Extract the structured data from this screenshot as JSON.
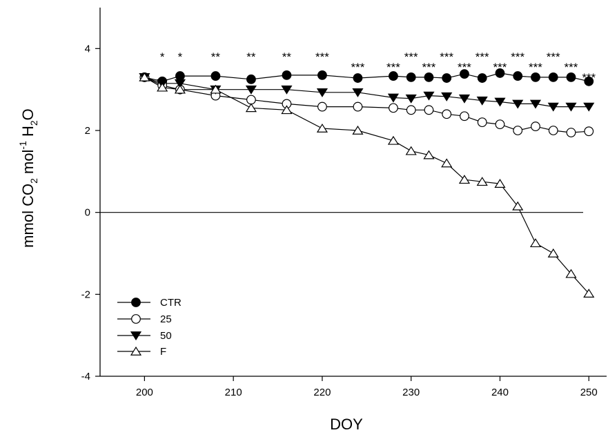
{
  "chart_data": {
    "type": "line",
    "xlabel": "DOY",
    "ylabel": {
      "parts": [
        {
          "text": "mmol CO",
          "kind": "normal"
        },
        {
          "text": "2",
          "kind": "sub"
        },
        {
          "text": " mol",
          "kind": "normal"
        },
        {
          "text": "-1",
          "kind": "sup"
        },
        {
          "text": " H",
          "kind": "normal"
        },
        {
          "text": "2",
          "kind": "sub"
        },
        {
          "text": "O",
          "kind": "normal"
        }
      ]
    },
    "xlim": [
      195,
      252
    ],
    "ylim": [
      -4,
      5
    ],
    "x_ticks": [
      200,
      210,
      220,
      230,
      240,
      250
    ],
    "y_ticks": [
      -4,
      -2,
      0,
      2,
      4
    ],
    "reference_line_y": 0,
    "grid": false,
    "legend_placement": "bottom-left",
    "series": [
      {
        "name": "CTR",
        "marker": "circle-filled",
        "x": [
          200,
          202,
          204,
          208,
          212,
          216,
          220,
          224,
          228,
          230,
          232,
          234,
          236,
          238,
          240,
          242,
          244,
          246,
          248,
          250
        ],
        "y": [
          3.3,
          3.2,
          3.33,
          3.33,
          3.25,
          3.35,
          3.35,
          3.28,
          3.33,
          3.3,
          3.3,
          3.28,
          3.38,
          3.28,
          3.4,
          3.33,
          3.3,
          3.3,
          3.3,
          3.2
        ]
      },
      {
        "name": "25",
        "marker": "circle-open",
        "x": [
          200,
          202,
          204,
          208,
          212,
          216,
          220,
          224,
          228,
          230,
          232,
          234,
          236,
          238,
          240,
          242,
          244,
          246,
          248,
          250
        ],
        "y": [
          3.3,
          3.1,
          3.0,
          2.85,
          2.75,
          2.65,
          2.58,
          2.58,
          2.55,
          2.5,
          2.5,
          2.4,
          2.35,
          2.2,
          2.15,
          2.0,
          2.1,
          2.0,
          1.95,
          1.98
        ]
      },
      {
        "name": "50",
        "marker": "triangle-down-filled",
        "x": [
          200,
          202,
          204,
          208,
          212,
          216,
          220,
          224,
          228,
          230,
          232,
          234,
          236,
          238,
          240,
          242,
          244,
          246,
          248,
          250
        ],
        "y": [
          3.3,
          3.15,
          3.15,
          3.0,
          3.0,
          3.0,
          2.93,
          2.93,
          2.8,
          2.78,
          2.85,
          2.83,
          2.78,
          2.73,
          2.7,
          2.65,
          2.65,
          2.58,
          2.58,
          2.58
        ]
      },
      {
        "name": "F",
        "marker": "triangle-up-open",
        "x": [
          200,
          202,
          204,
          208,
          212,
          216,
          220,
          224,
          228,
          230,
          232,
          234,
          236,
          238,
          240,
          242,
          244,
          246,
          248,
          250
        ],
        "y": [
          3.3,
          3.05,
          3.0,
          3.0,
          2.55,
          2.5,
          2.05,
          2.0,
          1.75,
          1.5,
          1.4,
          1.2,
          0.8,
          0.75,
          0.7,
          0.15,
          -0.75,
          -1.0,
          -1.5,
          -1.98
        ]
      }
    ],
    "annotations": [
      {
        "x": 202,
        "y": 3.7,
        "text": "*"
      },
      {
        "x": 204,
        "y": 3.7,
        "text": "*"
      },
      {
        "x": 208,
        "y": 3.7,
        "text": "**"
      },
      {
        "x": 212,
        "y": 3.7,
        "text": "**"
      },
      {
        "x": 216,
        "y": 3.7,
        "text": "**"
      },
      {
        "x": 220,
        "y": 3.7,
        "text": "***"
      },
      {
        "x": 224,
        "y": 3.45,
        "text": "***"
      },
      {
        "x": 228,
        "y": 3.45,
        "text": "***"
      },
      {
        "x": 230,
        "y": 3.7,
        "text": "***"
      },
      {
        "x": 232,
        "y": 3.45,
        "text": "***"
      },
      {
        "x": 234,
        "y": 3.7,
        "text": "***"
      },
      {
        "x": 236,
        "y": 3.45,
        "text": "***"
      },
      {
        "x": 238,
        "y": 3.7,
        "text": "***"
      },
      {
        "x": 240,
        "y": 3.45,
        "text": "***"
      },
      {
        "x": 242,
        "y": 3.7,
        "text": "***"
      },
      {
        "x": 244,
        "y": 3.45,
        "text": "***"
      },
      {
        "x": 246,
        "y": 3.7,
        "text": "***"
      },
      {
        "x": 248,
        "y": 3.45,
        "text": "***"
      },
      {
        "x": 250,
        "y": 3.2,
        "text": "***"
      }
    ]
  }
}
